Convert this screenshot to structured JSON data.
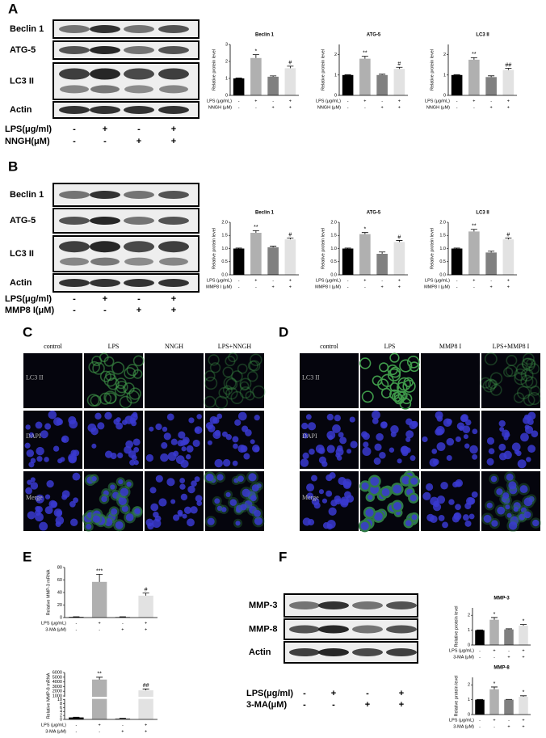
{
  "panel_labels": [
    "A",
    "B",
    "C",
    "D",
    "E",
    "F"
  ],
  "blots": [
    {
      "rows": [
        "Beclin 1",
        "ATG-5",
        "LC3 II",
        "Actin"
      ],
      "conditions": [
        {
          "label": "LPS(μg/ml)",
          "signs": [
            "-",
            "+",
            "-",
            "+"
          ]
        },
        {
          "label": "NNGH(μM)",
          "signs": [
            "-",
            "-",
            "+",
            "+"
          ]
        }
      ]
    },
    {
      "rows": [
        "Beclin 1",
        "ATG-5",
        "LC3 II",
        "Actin"
      ],
      "conditions": [
        {
          "label": "LPS(μg/ml)",
          "signs": [
            "-",
            "+",
            "-",
            "+"
          ]
        },
        {
          "label": "MMP8 I(μM)",
          "signs": [
            "-",
            "-",
            "+",
            "+"
          ]
        }
      ]
    },
    {
      "rows": [
        "MMP-3",
        "MMP-8",
        "Actin"
      ],
      "conditions": [
        {
          "label": "LPS(μg/ml)",
          "signs": [
            "-",
            "+",
            "-",
            "+"
          ]
        },
        {
          "label": "3-MA(μM)",
          "signs": [
            "-",
            "-",
            "+",
            "+"
          ]
        }
      ]
    }
  ],
  "microscopy": [
    {
      "columns": [
        "control",
        "LPS",
        "NNGH",
        "LPS+NNGH"
      ],
      "rows": [
        "LC3 II",
        "DAPI",
        "Merge"
      ]
    },
    {
      "columns": [
        "control",
        "LPS",
        "MMP8 I",
        "LPS+MMP8 I"
      ],
      "rows": [
        "LC3 II",
        "DAPI",
        "Merge"
      ]
    }
  ],
  "chart_data": [
    {
      "type": "bar",
      "title": "Beclin 1",
      "y_label": "Relative protein level",
      "values": [
        1.0,
        2.2,
        1.1,
        1.6
      ],
      "errors": [
        0.02,
        0.2,
        0.05,
        0.12
      ],
      "annotations": [
        null,
        "*",
        null,
        "#"
      ],
      "colors": [
        "#000000",
        "#b0b0b0",
        "#808080",
        "#e2e2e2"
      ],
      "ylim": [
        0,
        3
      ],
      "yticks": [
        0,
        1,
        2,
        3
      ],
      "conditions": [
        {
          "label": "LPS (μg/mL)",
          "signs": [
            "-",
            "+",
            "-",
            "+"
          ]
        },
        {
          "label": "NNGH (μM)",
          "signs": [
            "-",
            "-",
            "+",
            "+"
          ]
        }
      ]
    },
    {
      "type": "bar",
      "title": "ATG-5",
      "y_label": "Relative protein level",
      "values": [
        1.0,
        1.8,
        1.0,
        1.3
      ],
      "errors": [
        0.02,
        0.12,
        0.04,
        0.08
      ],
      "annotations": [
        null,
        "**",
        null,
        "#"
      ],
      "colors": [
        "#000000",
        "#b0b0b0",
        "#808080",
        "#e2e2e2"
      ],
      "ylim": [
        0,
        2.5
      ],
      "yticks": [
        0,
        1,
        2
      ],
      "conditions": [
        {
          "label": "LPS (μg/mL)",
          "signs": [
            "-",
            "+",
            "-",
            "+"
          ]
        },
        {
          "label": "NNGH (μM)",
          "signs": [
            "-",
            "-",
            "+",
            "+"
          ]
        }
      ]
    },
    {
      "type": "bar",
      "title": "LC3 II",
      "y_label": "Relative protein level",
      "values": [
        1.0,
        1.75,
        0.9,
        1.25
      ],
      "errors": [
        0.02,
        0.1,
        0.06,
        0.08
      ],
      "annotations": [
        null,
        "**",
        null,
        "##"
      ],
      "colors": [
        "#000000",
        "#b0b0b0",
        "#808080",
        "#e2e2e2"
      ],
      "ylim": [
        0,
        2.5
      ],
      "yticks": [
        0,
        1,
        2
      ],
      "conditions": [
        {
          "label": "LPS (μg/mL)",
          "signs": [
            "-",
            "+",
            "-",
            "+"
          ]
        },
        {
          "label": "NNGH (μM)",
          "signs": [
            "-",
            "-",
            "+",
            "+"
          ]
        }
      ]
    },
    {
      "type": "bar",
      "title": "Beclin 1",
      "y_label": "Relative protein level",
      "values": [
        1.0,
        1.6,
        1.05,
        1.35
      ],
      "errors": [
        0.02,
        0.08,
        0.04,
        0.05
      ],
      "annotations": [
        null,
        "**",
        null,
        "#"
      ],
      "colors": [
        "#000000",
        "#b0b0b0",
        "#808080",
        "#e2e2e2"
      ],
      "ylim": [
        0,
        2.0
      ],
      "yticks": [
        {
          "value": 0,
          "label": "0.0"
        },
        {
          "value": 0.5,
          "label": "0.5"
        },
        {
          "value": 1,
          "label": "1.0"
        },
        {
          "value": 1.5,
          "label": "1.5"
        },
        {
          "value": 2,
          "label": "2.0"
        }
      ],
      "conditions": [
        {
          "label": "LPS (μg/mL)",
          "signs": [
            "-",
            "+",
            "-",
            "+"
          ]
        },
        {
          "label": "MMP8 I (μM)",
          "signs": [
            "-",
            "-",
            "+",
            "+"
          ]
        }
      ]
    },
    {
      "type": "bar",
      "title": "ATG-5",
      "y_label": "Relative protein level",
      "values": [
        1.0,
        1.55,
        0.8,
        1.25
      ],
      "errors": [
        0.02,
        0.06,
        0.07,
        0.06
      ],
      "annotations": [
        null,
        "*",
        null,
        "#"
      ],
      "colors": [
        "#000000",
        "#b0b0b0",
        "#808080",
        "#e2e2e2"
      ],
      "ylim": [
        0,
        2.0
      ],
      "yticks": [
        {
          "value": 0,
          "label": "0.0"
        },
        {
          "value": 0.5,
          "label": "0.5"
        },
        {
          "value": 1,
          "label": "1.0"
        },
        {
          "value": 1.5,
          "label": "1.5"
        },
        {
          "value": 2,
          "label": "2.0"
        }
      ],
      "conditions": [
        {
          "label": "LPS (μg/mL)",
          "signs": [
            "-",
            "+",
            "-",
            "+"
          ]
        },
        {
          "label": "MMP8 I (μM)",
          "signs": [
            "-",
            "-",
            "+",
            "+"
          ]
        }
      ]
    },
    {
      "type": "bar",
      "title": "LC3 II",
      "y_label": "Relative protein level",
      "values": [
        1.0,
        1.65,
        0.85,
        1.35
      ],
      "errors": [
        0.02,
        0.08,
        0.05,
        0.05
      ],
      "annotations": [
        null,
        "**",
        null,
        "#"
      ],
      "colors": [
        "#000000",
        "#b0b0b0",
        "#808080",
        "#e2e2e2"
      ],
      "ylim": [
        0,
        2.0
      ],
      "yticks": [
        {
          "value": 0,
          "label": "0.0"
        },
        {
          "value": 0.5,
          "label": "0.5"
        },
        {
          "value": 1,
          "label": "1.0"
        },
        {
          "value": 1.5,
          "label": "1.5"
        },
        {
          "value": 2,
          "label": "2.0"
        }
      ],
      "conditions": [
        {
          "label": "LPS (μg/mL)",
          "signs": [
            "-",
            "+",
            "-",
            "+"
          ]
        },
        {
          "label": "MMP8 I (μM)",
          "signs": [
            "-",
            "-",
            "+",
            "+"
          ]
        }
      ]
    },
    {
      "type": "bar",
      "y_label": "Relative MMP-3 mRNA",
      "values": [
        1,
        57,
        1,
        35
      ],
      "errors": [
        0.2,
        12,
        0.2,
        4
      ],
      "annotations": [
        null,
        "***",
        null,
        "#"
      ],
      "colors": [
        "#000000",
        "#b0b0b0",
        "#808080",
        "#e2e2e2"
      ],
      "ylim": [
        0,
        80
      ],
      "yticks": [
        0,
        20,
        40,
        60,
        80
      ],
      "conditions": [
        {
          "label": "LPS (μg/mL)",
          "signs": [
            "-",
            "+",
            "-",
            "+"
          ]
        },
        {
          "label": "3-MA (μM)",
          "signs": [
            "-",
            "-",
            "+",
            "+"
          ]
        }
      ]
    },
    {
      "type": "bar",
      "y_label": "Relative MMP-8 mRNA",
      "values": [
        1,
        4500,
        0.5,
        2200
      ],
      "errors": [
        0.1,
        500,
        0.1,
        300
      ],
      "annotations": [
        null,
        "**",
        null,
        "##"
      ],
      "colors": [
        "#000000",
        "#b0b0b0",
        "#808080",
        "#e2e2e2"
      ],
      "ylim": [
        0,
        6000
      ],
      "ybreak": [
        10,
        1000
      ],
      "yticks": [
        0,
        2,
        4,
        6,
        8,
        10,
        1000,
        2000,
        3000,
        4000,
        5000,
        6000
      ],
      "conditions": [
        {
          "label": "LPS (μg/mL)",
          "signs": [
            "-",
            "+",
            "-",
            "+"
          ]
        },
        {
          "label": "3-MA (μM)",
          "signs": [
            "-",
            "-",
            "+",
            "+"
          ]
        }
      ]
    },
    {
      "type": "bar",
      "title": "MMP-3",
      "y_label": "Relative protein level",
      "values": [
        1.0,
        1.7,
        1.05,
        1.3
      ],
      "errors": [
        0.02,
        0.15,
        0.04,
        0.08
      ],
      "annotations": [
        null,
        "*",
        null,
        "*"
      ],
      "colors": [
        "#000000",
        "#b0b0b0",
        "#808080",
        "#e2e2e2"
      ],
      "ylim": [
        0,
        2.5
      ],
      "yticks": [
        0,
        1,
        2
      ],
      "conditions": [
        {
          "label": "LPS (μg/mL)",
          "signs": [
            "-",
            "+",
            "-",
            "+"
          ]
        },
        {
          "label": "3-MA (μM)",
          "signs": [
            "-",
            "-",
            "+",
            "+"
          ]
        }
      ]
    },
    {
      "type": "bar",
      "title": "MMP-8",
      "y_label": "Relative protein level",
      "values": [
        1.0,
        1.7,
        1.0,
        1.2
      ],
      "errors": [
        0.02,
        0.15,
        0.02,
        0.06
      ],
      "annotations": [
        null,
        "*",
        null,
        "*"
      ],
      "colors": [
        "#000000",
        "#b0b0b0",
        "#808080",
        "#e2e2e2"
      ],
      "ylim": [
        0,
        2.5
      ],
      "yticks": [
        0,
        1,
        2
      ],
      "conditions": [
        {
          "label": "LPS (μg/mL)",
          "signs": [
            "-",
            "+",
            "-",
            "+"
          ]
        },
        {
          "label": "3-MA (μM)",
          "signs": [
            "-",
            "-",
            "+",
            "+"
          ]
        }
      ]
    }
  ]
}
